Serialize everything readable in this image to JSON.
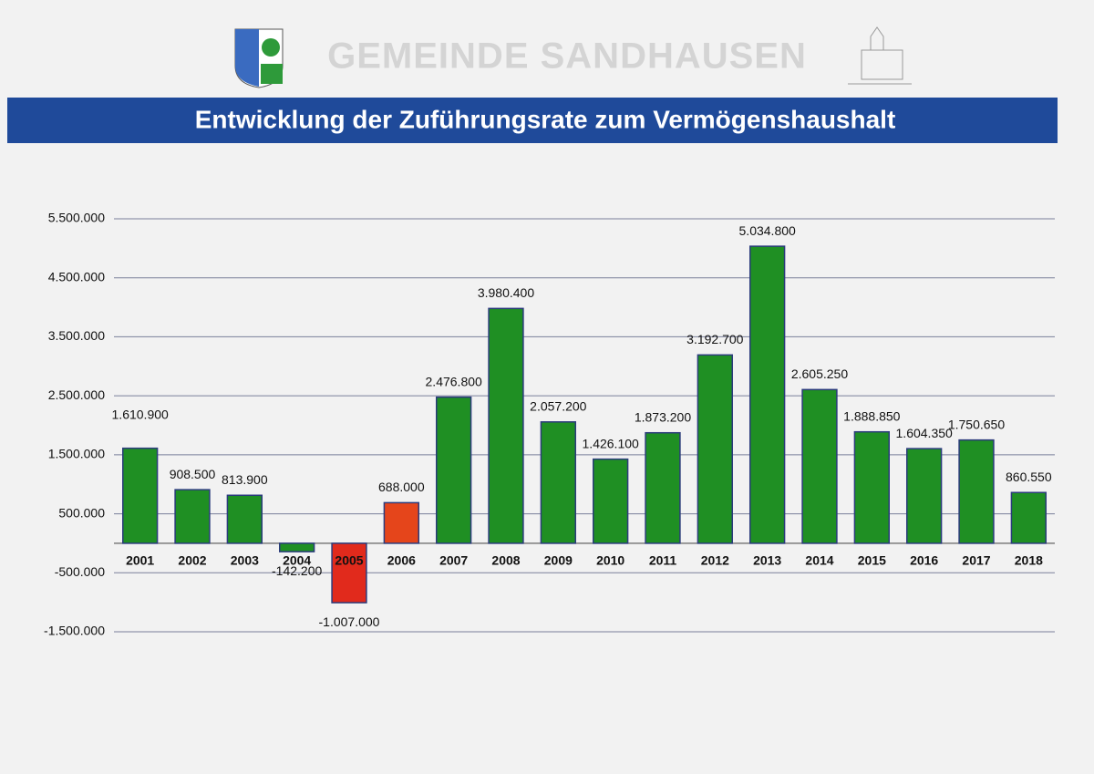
{
  "header": {
    "organization": "GEMEINDE SANDHAUSEN"
  },
  "chart_data": {
    "type": "bar",
    "title": "Entwicklung der Zuführungsrate zum Vermögenshaushalt",
    "categories": [
      "2001",
      "2002",
      "2003",
      "2004",
      "2005",
      "2006",
      "2007",
      "2008",
      "2009",
      "2010",
      "2011",
      "2012",
      "2013",
      "2014",
      "2015",
      "2016",
      "2017",
      "2018"
    ],
    "values": [
      1610900,
      908500,
      813900,
      -142200,
      -1007000,
      688000,
      2476800,
      3980400,
      2057200,
      1426100,
      1873200,
      3192700,
      5034800,
      2605250,
      1888850,
      1604350,
      1750650,
      860550
    ],
    "value_labels": [
      "1.610.900",
      "908.500",
      "813.900",
      "-142.200",
      "-1.007.000",
      "688.000",
      "2.476.800",
      "3.980.400",
      "2.057.200",
      "1.426.100",
      "1.873.200",
      "3.192.700",
      "5.034.800",
      "2.605.250",
      "1.888.850",
      "1.604.350",
      "1.750.650",
      "860.550"
    ],
    "colors": [
      "#1f8f23",
      "#1f8f23",
      "#1f8f23",
      "#1f8f23",
      "#e12a1c",
      "#e5451b",
      "#1f8f23",
      "#1f8f23",
      "#1f8f23",
      "#1f8f23",
      "#1f8f23",
      "#1f8f23",
      "#1f8f23",
      "#1f8f23",
      "#1f8f23",
      "#1f8f23",
      "#1f8f23",
      "#1f8f23"
    ],
    "ylim": [
      -1500000,
      5500000
    ],
    "yticks": [
      {
        "value": -1500000,
        "label": "-1.500.000"
      },
      {
        "value": -500000,
        "label": "-500.000"
      },
      {
        "value": 500000,
        "label": "500.000"
      },
      {
        "value": 1500000,
        "label": "1.500.000"
      },
      {
        "value": 2500000,
        "label": "2.500.000"
      },
      {
        "value": 3500000,
        "label": "3.500.000"
      },
      {
        "value": 4500000,
        "label": "4.500.000"
      },
      {
        "value": 5500000,
        "label": "5.500.000"
      }
    ],
    "grid": true
  }
}
